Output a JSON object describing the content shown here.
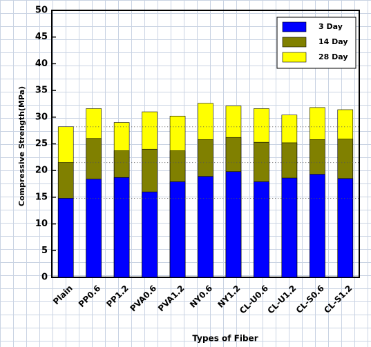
{
  "chart_data": {
    "type": "bar",
    "x_label": "Types of  Fiber",
    "y_label": "Compressive Strength(MPa)",
    "categories": [
      "Plain",
      "PP0.6",
      "PP1.2",
      "PVA0.6",
      "PVA1.2",
      "NY0.6",
      "NY1.2",
      "CL-U0.6",
      "CL-U1.2",
      "CL-S0.6",
      "CL-S1.2"
    ],
    "series": [
      {
        "name": "3 Day",
        "color": "#0000ff",
        "values": [
          14.8,
          18.4,
          18.7,
          16.0,
          17.9,
          18.9,
          19.8,
          17.9,
          18.6,
          19.3,
          18.5
        ]
      },
      {
        "name": "14 Day",
        "color": "#808000",
        "values": [
          21.5,
          26.0,
          23.7,
          24.0,
          23.7,
          25.8,
          26.2,
          25.3,
          25.2,
          25.8,
          25.9
        ]
      },
      {
        "name": "28 Day",
        "color": "#ffff00",
        "values": [
          28.2,
          31.6,
          29.0,
          31.0,
          30.2,
          32.6,
          32.1,
          31.6,
          30.4,
          31.8,
          31.4
        ]
      }
    ],
    "ylim": [
      0,
      50
    ],
    "yticks": [
      0,
      5,
      10,
      15,
      20,
      25,
      30,
      35,
      40,
      45,
      50
    ],
    "legend": "upper right"
  }
}
